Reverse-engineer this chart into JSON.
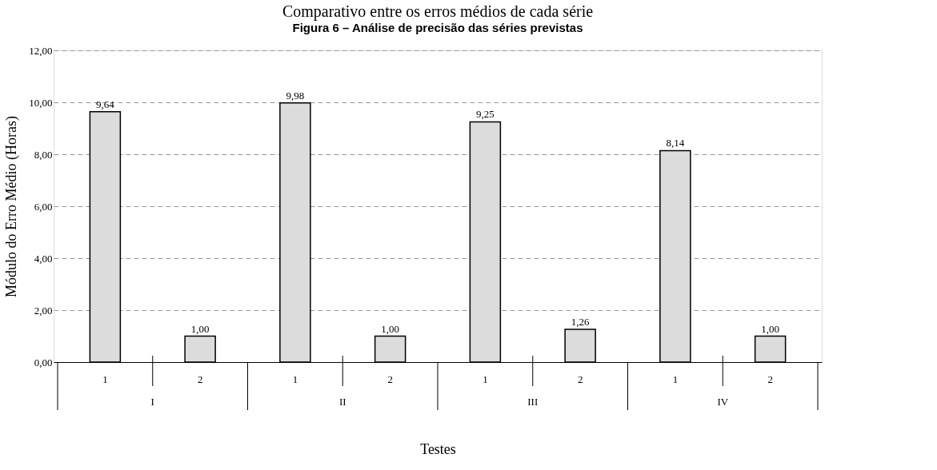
{
  "chart_data": {
    "type": "bar",
    "title": "Comparativo entre os erros médios de cada série",
    "xlabel": "Testes",
    "ylabel": "Módulo do Erro Médio (Horas)",
    "categories": [
      "1",
      "2",
      "1",
      "2",
      "1",
      "2",
      "1",
      "2"
    ],
    "values": [
      9.64,
      1.0,
      9.98,
      1.0,
      9.25,
      1.26,
      8.14,
      1.0
    ],
    "value_labels": [
      "9,64",
      "1,00",
      "9,98",
      "1,00",
      "9,25",
      "1,26",
      "8,14",
      "1,00"
    ],
    "color": "#dcdcdc",
    "ylim": [
      0,
      12
    ],
    "yticks": [
      {
        "value": 0,
        "label": "0,00"
      },
      {
        "value": 2,
        "label": "2,00"
      },
      {
        "value": 4,
        "label": "4,00"
      },
      {
        "value": 6,
        "label": "6,00"
      },
      {
        "value": 8,
        "label": "8,00"
      },
      {
        "value": 10,
        "label": "10,00"
      },
      {
        "value": 12,
        "label": "12,00"
      }
    ],
    "grid": "y",
    "annotations": [
      "Figura 6 – Análise de precisão das séries previstas",
      "I",
      "II",
      "III",
      "IV"
    ]
  }
}
